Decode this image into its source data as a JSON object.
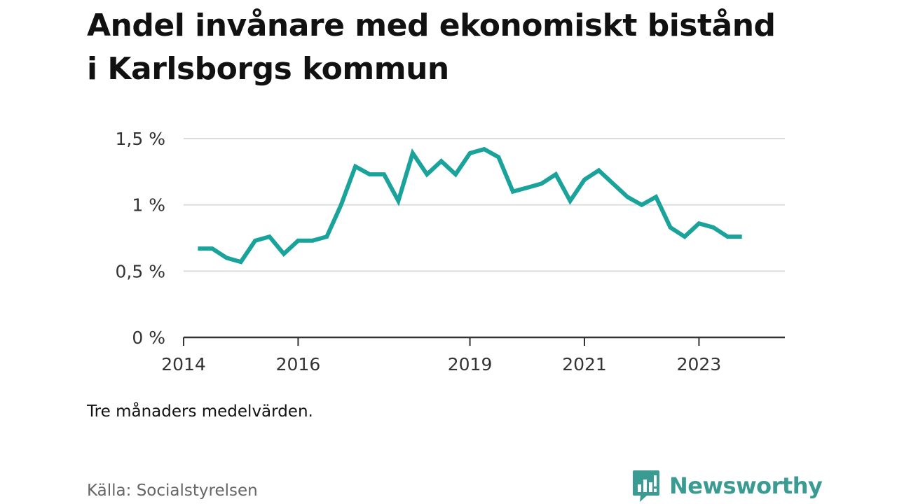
{
  "title": "Andel invånare med ekonomiskt bistånd i Karlsborgs kommun",
  "note": "Tre månaders medelvärden.",
  "source": "Källa: Socialstyrelsen",
  "brand": {
    "name": "Newsworthy",
    "icon": "newsworthy-logo-icon",
    "color": "#3a9b93"
  },
  "chart_data": {
    "type": "line",
    "title": "Andel invånare med ekonomiskt bistånd i Karlsborgs kommun",
    "xlabel": "",
    "ylabel": "",
    "grid": true,
    "line_color": "#1aa39a",
    "xlim": [
      2014.0,
      2024.5
    ],
    "ylim": [
      0,
      1.5
    ],
    "x_ticks": [
      2014,
      2016,
      2019,
      2021,
      2023
    ],
    "y_ticks": [
      {
        "value": 0,
        "label": "0 %"
      },
      {
        "value": 0.5,
        "label": "0,5 %"
      },
      {
        "value": 1,
        "label": "1 %"
      },
      {
        "value": 1.5,
        "label": "1,5 %"
      }
    ],
    "series": [
      {
        "x": [
          2014.25,
          2014.5,
          2014.75,
          2015.0,
          2015.25,
          2015.5,
          2015.75,
          2016.0,
          2016.25,
          2016.5,
          2016.75,
          2017.0,
          2017.25,
          2017.5,
          2017.75,
          2018.0,
          2018.25,
          2018.5,
          2018.75,
          2019.0,
          2019.25,
          2019.5,
          2019.75,
          2020.0,
          2020.25,
          2020.5,
          2020.75,
          2021.0,
          2021.25,
          2021.5,
          2021.75,
          2022.0,
          2022.25,
          2022.5,
          2022.75,
          2023.0,
          2023.25,
          2023.5,
          2023.75
        ],
        "values": [
          0.67,
          0.67,
          0.6,
          0.57,
          0.73,
          0.76,
          0.63,
          0.73,
          0.73,
          0.76,
          1.0,
          1.29,
          1.23,
          1.23,
          1.03,
          1.39,
          1.23,
          1.33,
          1.23,
          1.39,
          1.42,
          1.36,
          1.1,
          1.13,
          1.16,
          1.23,
          1.03,
          1.19,
          1.26,
          1.16,
          1.06,
          1.0,
          1.06,
          0.83,
          0.76,
          0.86,
          0.83,
          0.76,
          0.76
        ]
      }
    ]
  }
}
